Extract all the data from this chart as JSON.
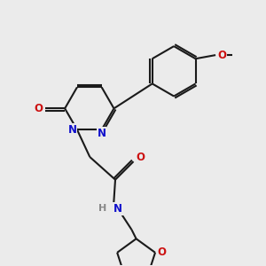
{
  "bg_color": "#ebebeb",
  "bond_color": "#1a1a1a",
  "N_color": "#1010cc",
  "O_color": "#cc1010",
  "H_color": "#888888",
  "lw": 1.5,
  "fs": 8.5,
  "xlim": [
    0.2,
    3.0
  ],
  "ylim": [
    0.15,
    3.05
  ]
}
